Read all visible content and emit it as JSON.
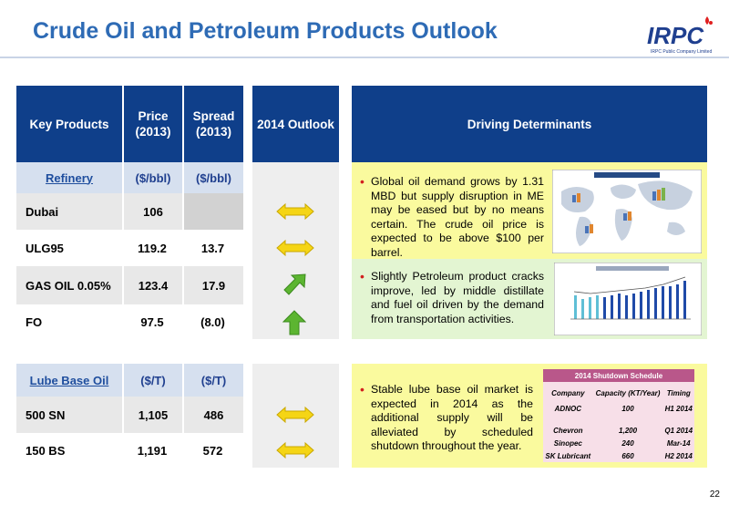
{
  "title": "Crude Oil and Petroleum Products Outlook",
  "logo": {
    "name": "IRPC",
    "subtitle": "IRPC Public Company Limited"
  },
  "table": {
    "headers": {
      "product": "Key Products",
      "price": "Price (2013)",
      "spread": "Spread (2013)",
      "outlook": "2014 Outlook",
      "drivers": "Driving Determinants"
    },
    "refinery": {
      "label": "Refinery",
      "price_unit": "($/bbl)",
      "spread_unit": "($/bbl)",
      "rows": [
        {
          "product": "Dubai",
          "price": "106",
          "spread": "",
          "outlook": "sideways-arrow-icon"
        },
        {
          "product": "ULG95",
          "price": "119.2",
          "spread": "13.7",
          "outlook": "sideways-arrow-icon"
        },
        {
          "product": "GAS OIL 0.05%",
          "price": "123.4",
          "spread": "17.9",
          "outlook": "up-right-arrow-icon"
        },
        {
          "product": "FO",
          "price": "97.5",
          "spread": "(8.0)",
          "outlook": "up-arrow-icon"
        }
      ]
    },
    "lube": {
      "label": "Lube Base Oil",
      "price_unit": "($/T)",
      "spread_unit": "($/T)",
      "rows": [
        {
          "product": "500 SN",
          "price": "1,105",
          "spread": "486",
          "outlook": "sideways-arrow-icon"
        },
        {
          "product": "150 BS",
          "price": "1,191",
          "spread": "572",
          "outlook": "sideways-arrow-icon"
        }
      ]
    }
  },
  "drivers": [
    "Global oil demand grows by 1.31 MBD but supply disruption in ME may be eased but by no means certain. The crude oil price is expected to be above $100 per barrel.",
    "Slightly Petroleum product cracks improve, led by middle distillate and fuel oil driven by the demand from transportation activities.",
    "Stable lube base oil market is expected in 2014 as the additional supply will be alleviated by scheduled shutdown throughout the year."
  ],
  "schedule": {
    "title": "2014 Shutdown Schedule",
    "columns": [
      "Company",
      "Capacity (KT/Year)",
      "Timing"
    ],
    "rows": [
      [
        "ADNOC",
        "100",
        "H1 2014"
      ],
      [
        "Chevron",
        "1,200",
        "Q1 2014"
      ],
      [
        "Sinopec",
        "240",
        "Mar-14"
      ],
      [
        "SK Lubricant",
        "660",
        "H2 2014"
      ]
    ]
  },
  "colors": {
    "title": "#2e6bb5",
    "header": "#0f3f8a",
    "driver_yellow": "#fafa9e",
    "driver_green": "#e3f5d2",
    "arrow_yellow": "#f5d515",
    "arrow_green": "#5cb531"
  },
  "page_number": "22"
}
